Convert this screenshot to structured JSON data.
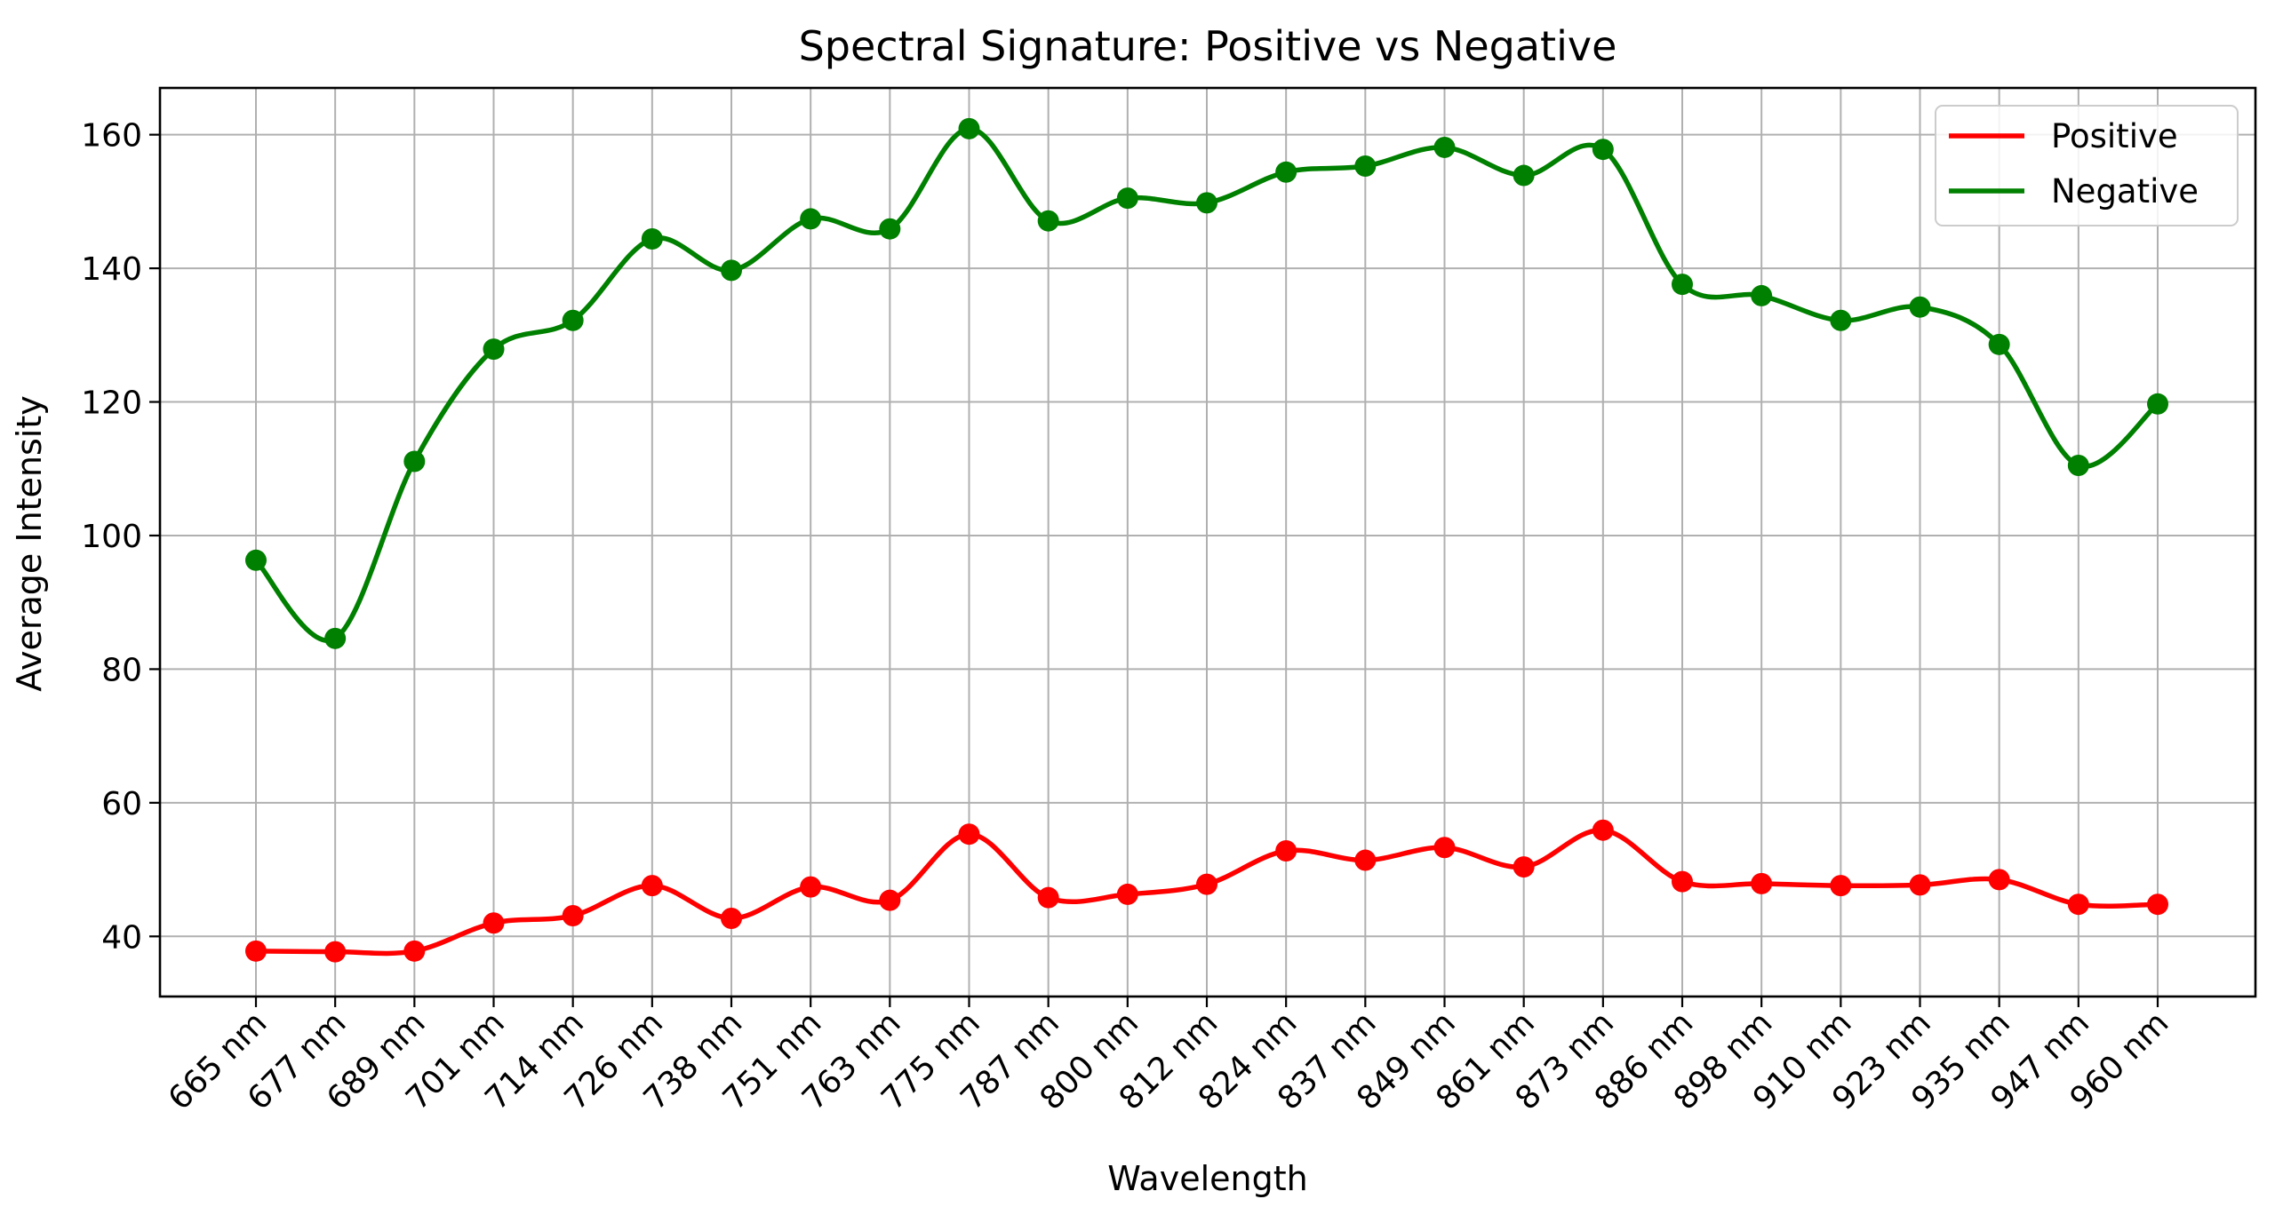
{
  "chart_data": {
    "type": "line",
    "title": "Spectral Signature: Positive vs Negative",
    "xlabel": "Wavelength",
    "ylabel": "Average Intensity",
    "categories": [
      "665 nm",
      "677 nm",
      "689 nm",
      "701 nm",
      "714 nm",
      "726 nm",
      "738 nm",
      "751 nm",
      "763 nm",
      "775 nm",
      "787 nm",
      "800 nm",
      "812 nm",
      "824 nm",
      "837 nm",
      "849 nm",
      "861 nm",
      "873 nm",
      "886 nm",
      "898 nm",
      "910 nm",
      "923 nm",
      "935 nm",
      "947 nm",
      "960 nm"
    ],
    "yticks": [
      40,
      60,
      80,
      100,
      120,
      140,
      160
    ],
    "ylim": [
      31,
      167
    ],
    "grid": true,
    "legend_position": "top-right",
    "series": [
      {
        "name": "Positive",
        "color": "#ff0000",
        "values": [
          37.8,
          37.7,
          37.8,
          42.0,
          43.1,
          47.6,
          42.7,
          47.4,
          45.4,
          55.3,
          45.8,
          46.3,
          47.8,
          52.8,
          51.4,
          53.3,
          50.4,
          55.9,
          48.2,
          47.9,
          47.6,
          47.7,
          48.5,
          44.8,
          44.8
        ]
      },
      {
        "name": "Negative",
        "color": "#008000",
        "values": [
          96.3,
          84.6,
          111.1,
          127.9,
          132.2,
          144.4,
          139.7,
          147.4,
          145.9,
          160.9,
          147.1,
          150.5,
          149.8,
          154.4,
          155.3,
          158.1,
          153.9,
          157.8,
          137.6,
          135.9,
          132.2,
          134.2,
          128.6,
          110.5,
          119.7
        ]
      }
    ]
  }
}
